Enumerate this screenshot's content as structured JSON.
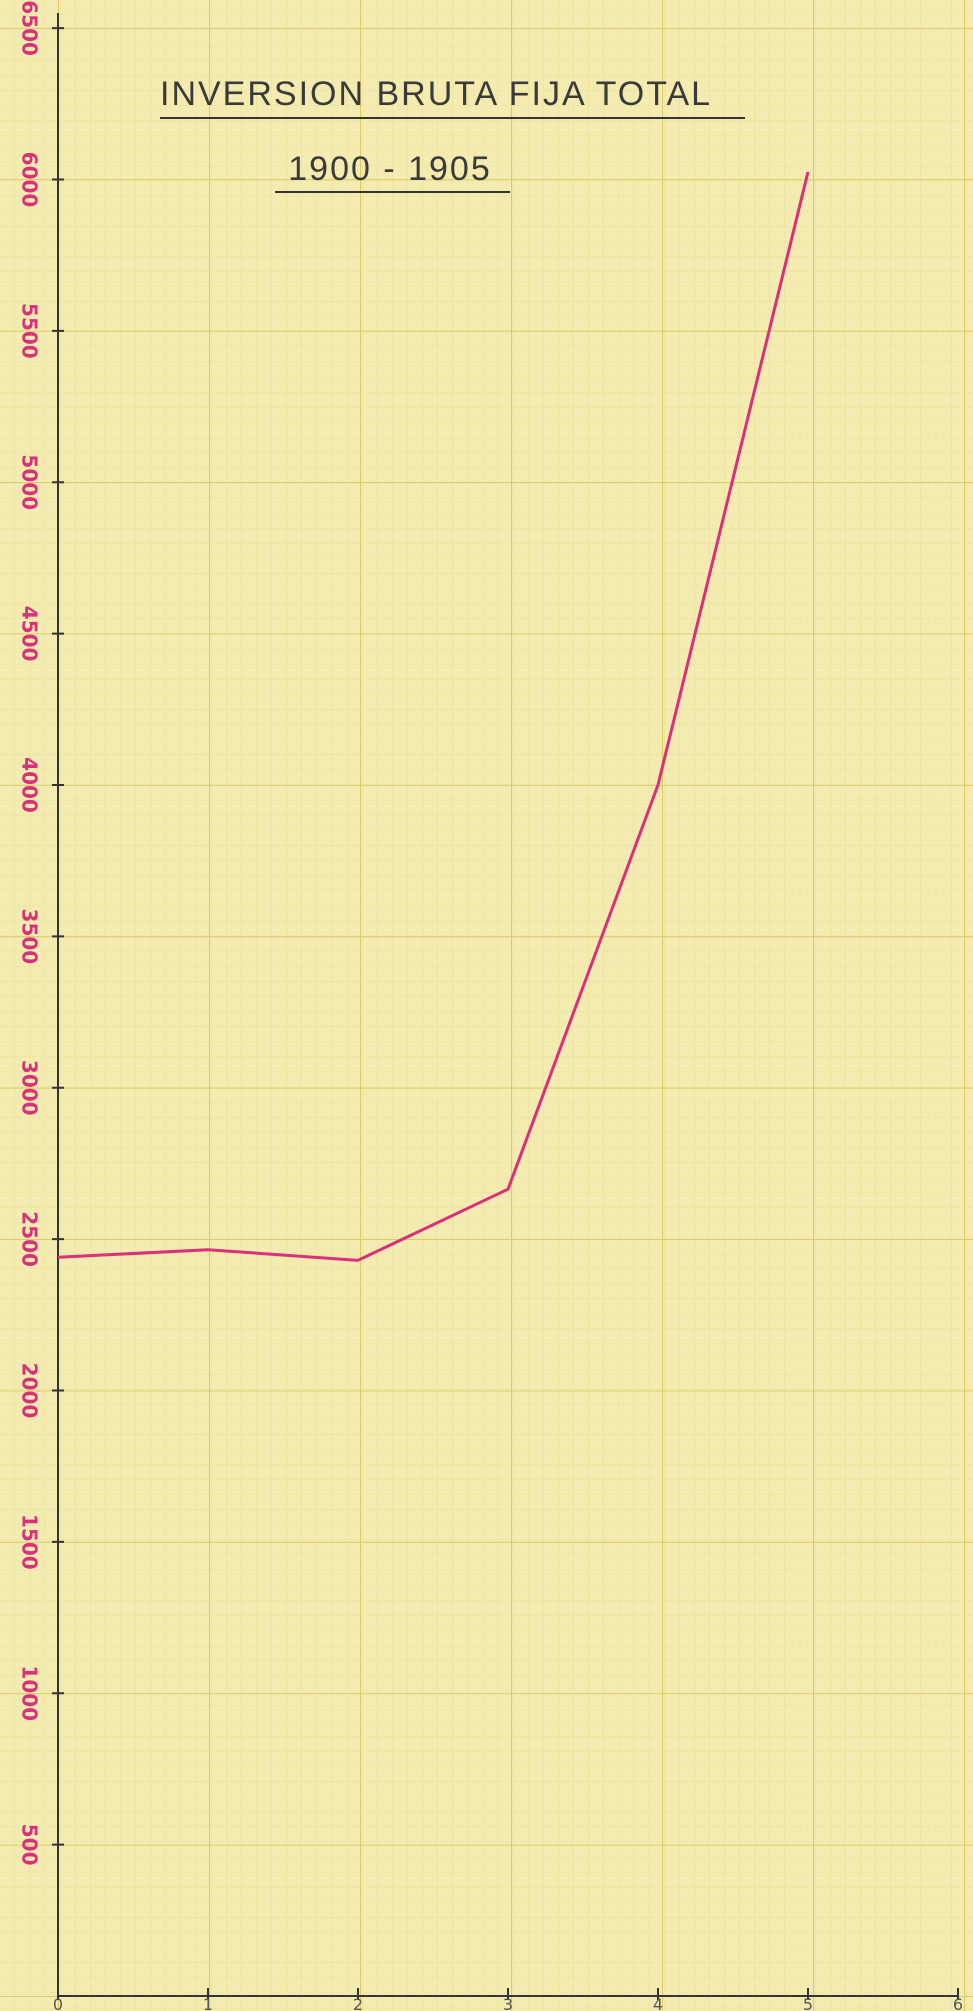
{
  "chart_data": {
    "type": "line",
    "title": "INVERSION BRUTA FIJA TOTAL",
    "subtitle": "1900 - 1905",
    "x": [
      0,
      1,
      2,
      3,
      4,
      5
    ],
    "xlim": [
      0,
      6
    ],
    "xticks": [
      0,
      1,
      2,
      3,
      4,
      5,
      6
    ],
    "series": [
      {
        "name": "Inversion bruta fija total",
        "color": "#d8307a",
        "values": [
          2440,
          2465,
          2430,
          2665,
          4000,
          6025
        ]
      }
    ],
    "ylim": [
      0,
      6550
    ],
    "yticks": [
      500,
      1000,
      1500,
      2000,
      2500,
      3000,
      3500,
      4000,
      4500,
      5000,
      5500,
      6000,
      6500
    ]
  }
}
